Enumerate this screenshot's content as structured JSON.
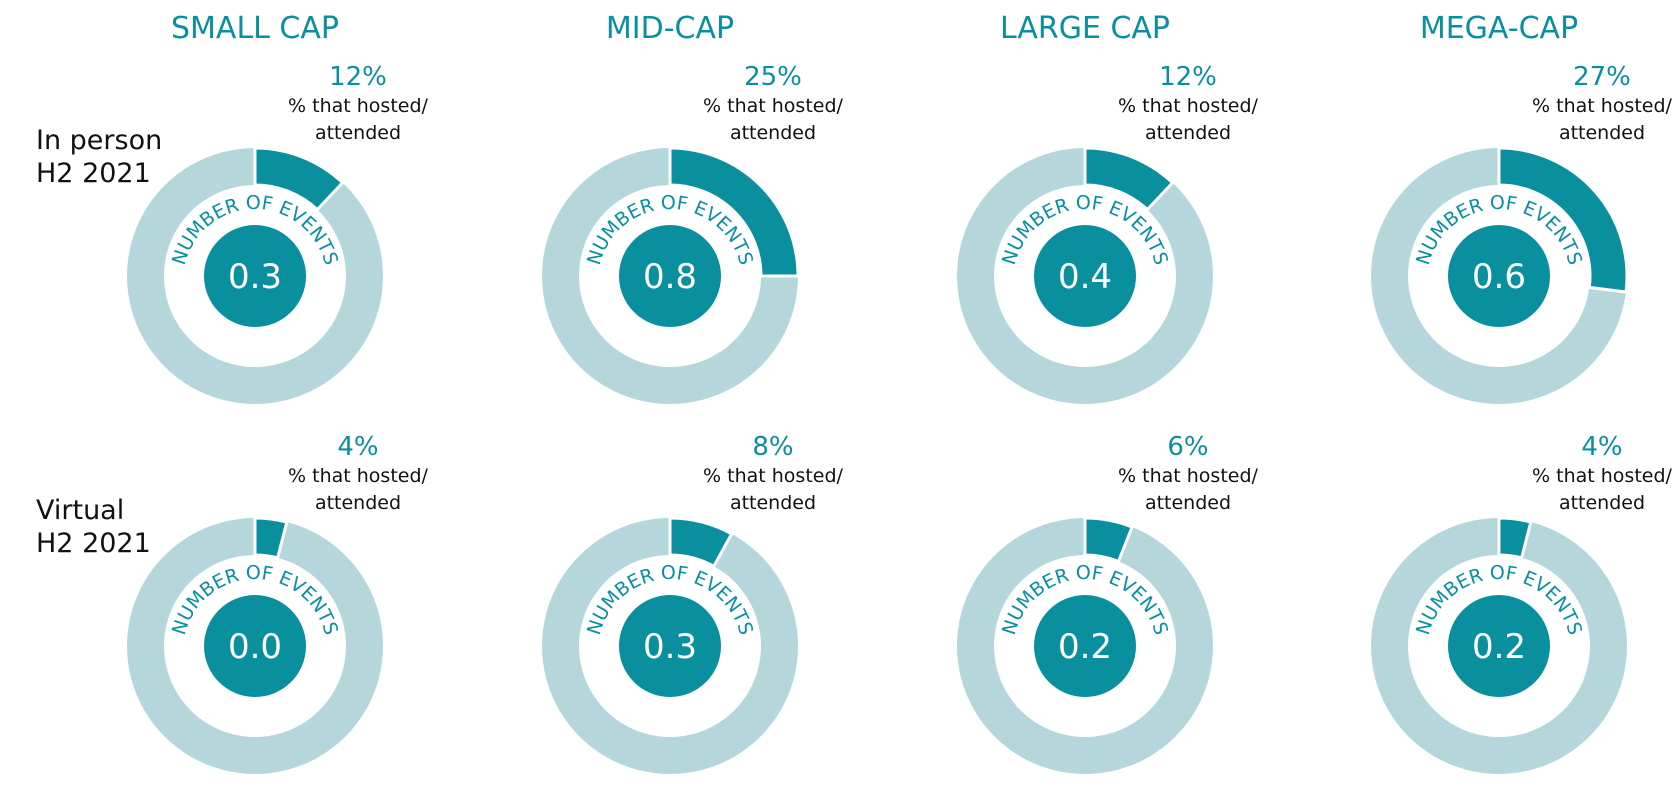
{
  "colors": {
    "accent": "#0a8f9f",
    "ring_background": "#b5d7dc",
    "circle_text": "#ffffff",
    "label_text": "#111111"
  },
  "labels": {
    "center_arc_text": "NUMBER OF EVENTS",
    "pct_caption_line1": "% that hosted/",
    "pct_caption_line2": "attended"
  },
  "chart_data": {
    "type": "pie",
    "columns": [
      "SMALL CAP",
      "MID-CAP",
      "LARGE CAP",
      "MEGA-CAP"
    ],
    "rows": [
      {
        "label": [
          "In person",
          "H2 2021"
        ],
        "percent": [
          "12%",
          "25%",
          "12%",
          "27%"
        ],
        "pct_values": [
          12,
          25,
          12,
          27
        ],
        "events": [
          "0.3",
          "0.8",
          "0.4",
          "0.6"
        ]
      },
      {
        "label": [
          "Virtual",
          "H2 2021"
        ],
        "percent": [
          "4%",
          "8%",
          "6%",
          "4%"
        ],
        "pct_values": [
          4,
          8,
          6,
          4
        ],
        "events": [
          "0.0",
          "0.3",
          "0.2",
          "0.2"
        ]
      }
    ]
  }
}
